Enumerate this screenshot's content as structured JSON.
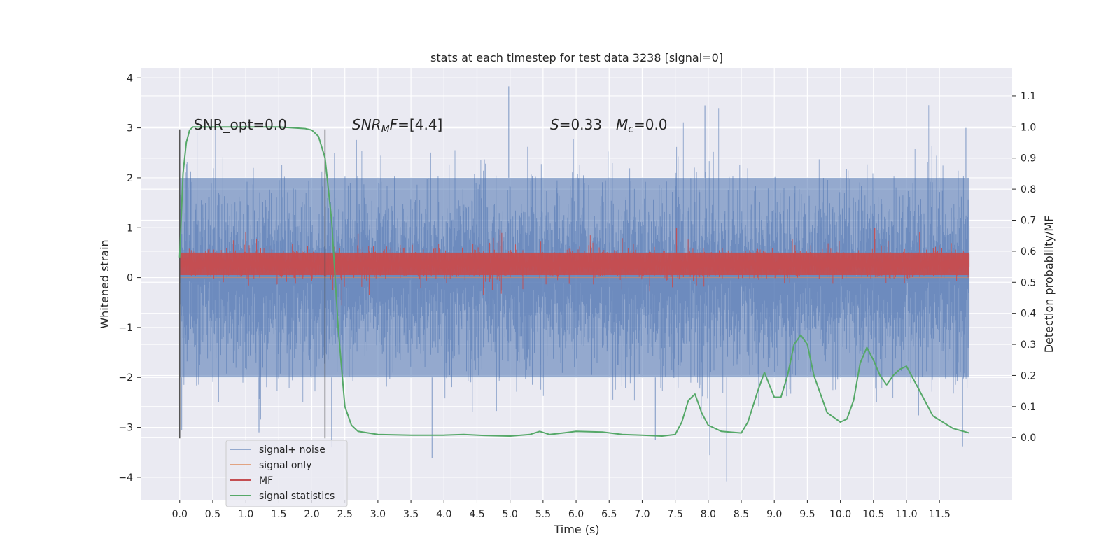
{
  "chart_data": {
    "type": "line",
    "title": "stats at each timestep for test data 3238 [signal=0]",
    "xlabel": "Time (s)",
    "ylabel": "Whitened strain",
    "y2label": "Detection probability/MF",
    "xlim": [
      -0.58,
      12.6
    ],
    "ylim": [
      -4.45,
      4.2
    ],
    "y2lim": [
      -0.2,
      1.19
    ],
    "x_ticks": [
      0.0,
      0.5,
      1.0,
      1.5,
      2.0,
      2.5,
      3.0,
      3.5,
      4.0,
      4.5,
      5.0,
      5.5,
      6.0,
      6.5,
      7.0,
      7.5,
      8.0,
      8.5,
      9.0,
      9.5,
      10.0,
      10.5,
      11.0,
      11.5
    ],
    "x_tick_labels": [
      "0.0",
      "0.5",
      "1.0",
      "1.5",
      "2.0",
      "2.5",
      "3.0",
      "3.5",
      "4.0",
      "4.5",
      "5.0",
      "5.5",
      "6.0",
      "6.5",
      "7.0",
      "7.5",
      "8.0",
      "8.5",
      "9.0",
      "9.5",
      "10.0",
      "10.5",
      "11.0",
      "11.5"
    ],
    "y_ticks": [
      4,
      3,
      2,
      1,
      0,
      -1,
      -2,
      -3,
      -4
    ],
    "y_tick_labels": [
      "4",
      "3",
      "2",
      "1",
      "0",
      "−1",
      "−2",
      "−3",
      "−4"
    ],
    "y2_ticks": [
      1.1,
      1.0,
      0.9,
      0.8,
      0.7,
      0.6,
      0.5,
      0.4,
      0.3,
      0.2,
      0.1,
      0.0
    ],
    "y2_tick_labels": [
      "1.1",
      "1.0",
      "0.9",
      "0.8",
      "0.7",
      "0.6",
      "0.5",
      "0.4",
      "0.3",
      "0.2",
      "0.1",
      "0.0"
    ],
    "grid": true,
    "legend_position": "bottom-left",
    "annotations": {
      "snr_opt": "SNR_opt=0.0",
      "snr_mf": "=[4.4]",
      "snr_mf_math": "SNR",
      "snr_mf_sub": "M",
      "snr_mf_f": "F",
      "stat_S": "S",
      "stat_S_val": "=0.33",
      "stat_M": "M",
      "stat_M_sub": "c",
      "stat_M_val": "=0.0"
    },
    "vlines": [
      0.0,
      2.2
    ],
    "series": [
      {
        "name": "signal+ noise",
        "color": "#4c72b0",
        "axis": "left",
        "kind": "noise_band",
        "x_range": [
          0.0,
          11.95
        ],
        "envelope": [
          -2.0,
          2.0
        ],
        "extremes": [
          {
            "x": 4.98,
            "y": 3.83
          },
          {
            "x": 3.82,
            "y": -3.62
          },
          {
            "x": 8.28,
            "y": -4.08
          },
          {
            "x": 0.03,
            "y": -3.05
          },
          {
            "x": 1.2,
            "y": -3.1
          },
          {
            "x": 2.3,
            "y": -3.4
          },
          {
            "x": 7.2,
            "y": -3.25
          },
          {
            "x": 7.95,
            "y": 3.45
          },
          {
            "x": 11.85,
            "y": -3.38
          },
          {
            "x": 11.9,
            "y": 3.0
          }
        ]
      },
      {
        "name": "signal only",
        "color": "#dd8452",
        "axis": "left",
        "kind": "line",
        "x": [
          0.0,
          11.95
        ],
        "values": [
          0.0,
          0.0
        ]
      },
      {
        "name": "MF",
        "color": "#c44e52",
        "axis": "left",
        "kind": "noise_band",
        "x_range": [
          0.0,
          11.95
        ],
        "envelope": [
          0.05,
          0.5
        ],
        "extremes": [
          {
            "x": 1.0,
            "y": 0.92
          },
          {
            "x": 2.7,
            "y": 0.88
          },
          {
            "x": 4.85,
            "y": 0.95
          },
          {
            "x": 7.52,
            "y": 1.0
          },
          {
            "x": 10.52,
            "y": 1.0
          },
          {
            "x": 11.2,
            "y": 0.92
          }
        ]
      },
      {
        "name": "signal statistics",
        "color": "#55a868",
        "axis": "right",
        "kind": "line",
        "x": [
          0.0,
          0.05,
          0.1,
          0.15,
          0.2,
          0.4,
          1.0,
          1.5,
          1.9,
          2.0,
          2.1,
          2.2,
          2.3,
          2.4,
          2.5,
          2.6,
          2.7,
          3.0,
          3.5,
          4.0,
          4.3,
          4.6,
          5.0,
          5.3,
          5.45,
          5.6,
          5.8,
          6.0,
          6.4,
          6.7,
          7.0,
          7.3,
          7.5,
          7.6,
          7.7,
          7.8,
          7.9,
          8.0,
          8.2,
          8.5,
          8.6,
          8.75,
          8.85,
          9.0,
          9.1,
          9.2,
          9.3,
          9.4,
          9.5,
          9.6,
          9.8,
          10.0,
          10.1,
          10.2,
          10.3,
          10.4,
          10.5,
          10.6,
          10.7,
          10.8,
          10.9,
          11.0,
          11.2,
          11.4,
          11.7,
          11.95
        ],
        "values": [
          0.58,
          0.85,
          0.95,
          0.99,
          1.0,
          1.0,
          1.0,
          1.0,
          0.995,
          0.99,
          0.97,
          0.9,
          0.7,
          0.35,
          0.1,
          0.04,
          0.02,
          0.01,
          0.008,
          0.008,
          0.01,
          0.007,
          0.005,
          0.01,
          0.02,
          0.01,
          0.015,
          0.02,
          0.018,
          0.01,
          0.008,
          0.005,
          0.01,
          0.05,
          0.12,
          0.14,
          0.08,
          0.04,
          0.02,
          0.015,
          0.05,
          0.15,
          0.21,
          0.13,
          0.13,
          0.2,
          0.3,
          0.33,
          0.3,
          0.2,
          0.08,
          0.05,
          0.06,
          0.12,
          0.24,
          0.29,
          0.25,
          0.2,
          0.17,
          0.2,
          0.22,
          0.23,
          0.15,
          0.07,
          0.03,
          0.015
        ]
      }
    ]
  }
}
